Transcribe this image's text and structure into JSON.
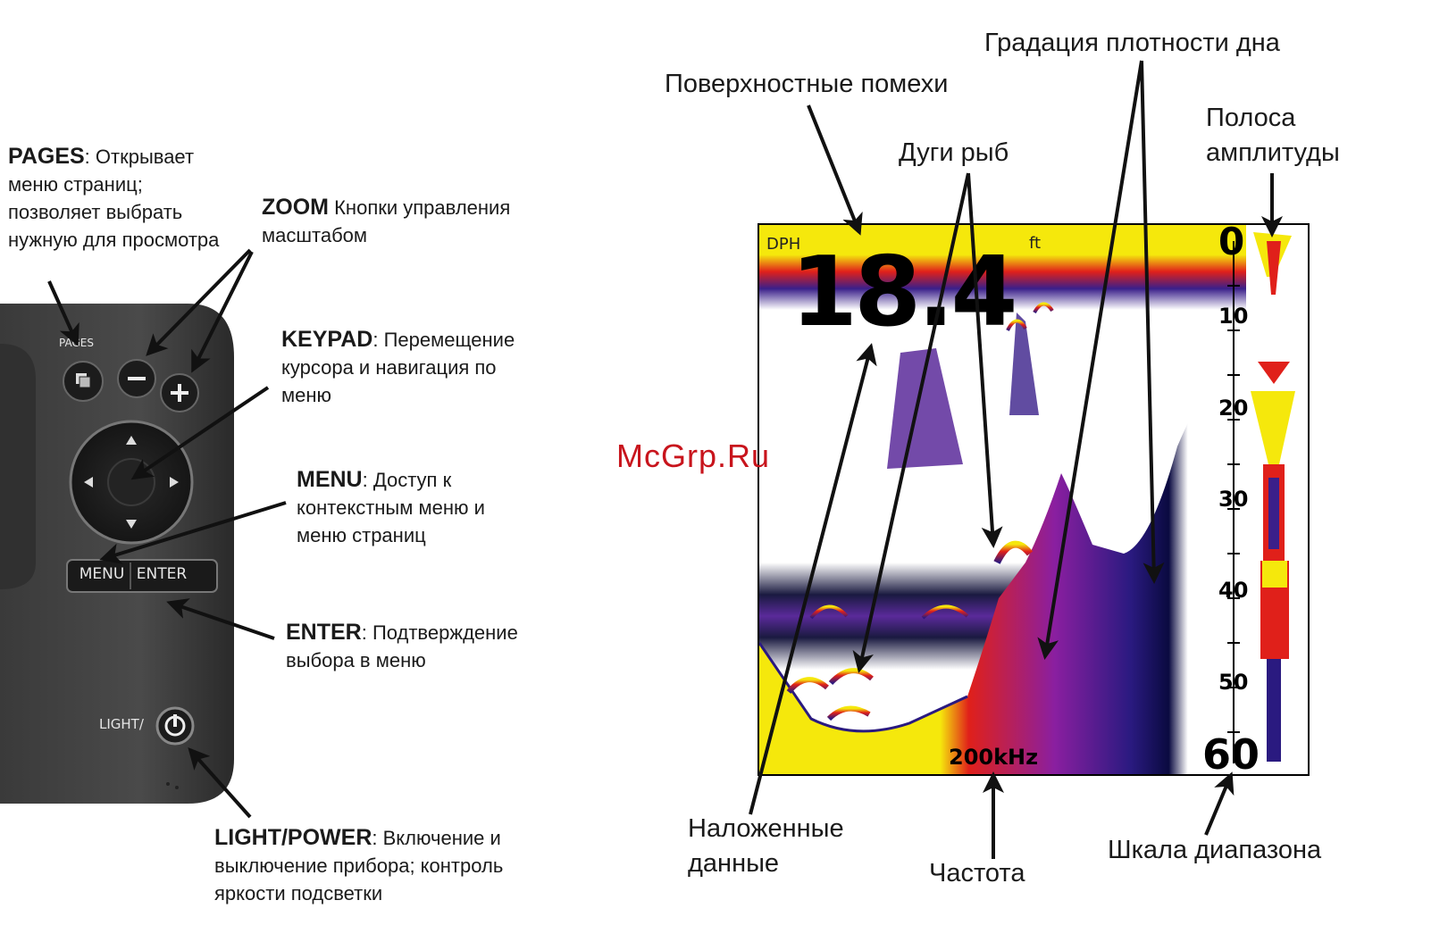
{
  "device": {
    "pages_label": "PAGES",
    "menu_label": "MENU",
    "enter_label": "ENTER",
    "light_label": "LIGHT/"
  },
  "left_labels": {
    "pages": {
      "title": "PAGES",
      "text": ": Открывает меню страниц; позволяет выбрать нужную для просмотра"
    },
    "zoom": {
      "title": "ZOOM",
      "text": " Кнопки управления масштабом"
    },
    "keypad": {
      "title": "KEYPAD",
      "text": ": Перемещение курсора и навигация по меню"
    },
    "menu": {
      "title": "MENU",
      "text": ": Доступ к контекстным меню и меню страниц"
    },
    "enter": {
      "title": "ENTER",
      "text": ": Подтверждение выбора в меню"
    },
    "light": {
      "title": "LIGHT/POWER",
      "text": ": Включение и выключение прибора; контроль яркости подсветки"
    }
  },
  "sonar": {
    "dph_label": "DPH",
    "unit": "ft",
    "depth_value": "18.4",
    "frequency": "200kHz",
    "scale_ticks": [
      "0",
      "10",
      "20",
      "30",
      "40",
      "50",
      "60"
    ],
    "colors": {
      "yellow": "#f5e80c",
      "red": "#e0201a",
      "purple": "#3a1f8a",
      "navy": "#0a0a40"
    }
  },
  "callouts": {
    "surface_clutter": "Поверхностные помехи",
    "fish_arcs": "Дуги рыб",
    "bottom_density": "Градация плотности дна",
    "amplitude_line1": "Полоса",
    "amplitude_line2": "амплитуды",
    "overlay_line1": "Наложенные",
    "overlay_line2": "данные",
    "frequency": "Частота",
    "range_scale": "Шкала диапазона"
  },
  "watermark": "McGrp.Ru"
}
